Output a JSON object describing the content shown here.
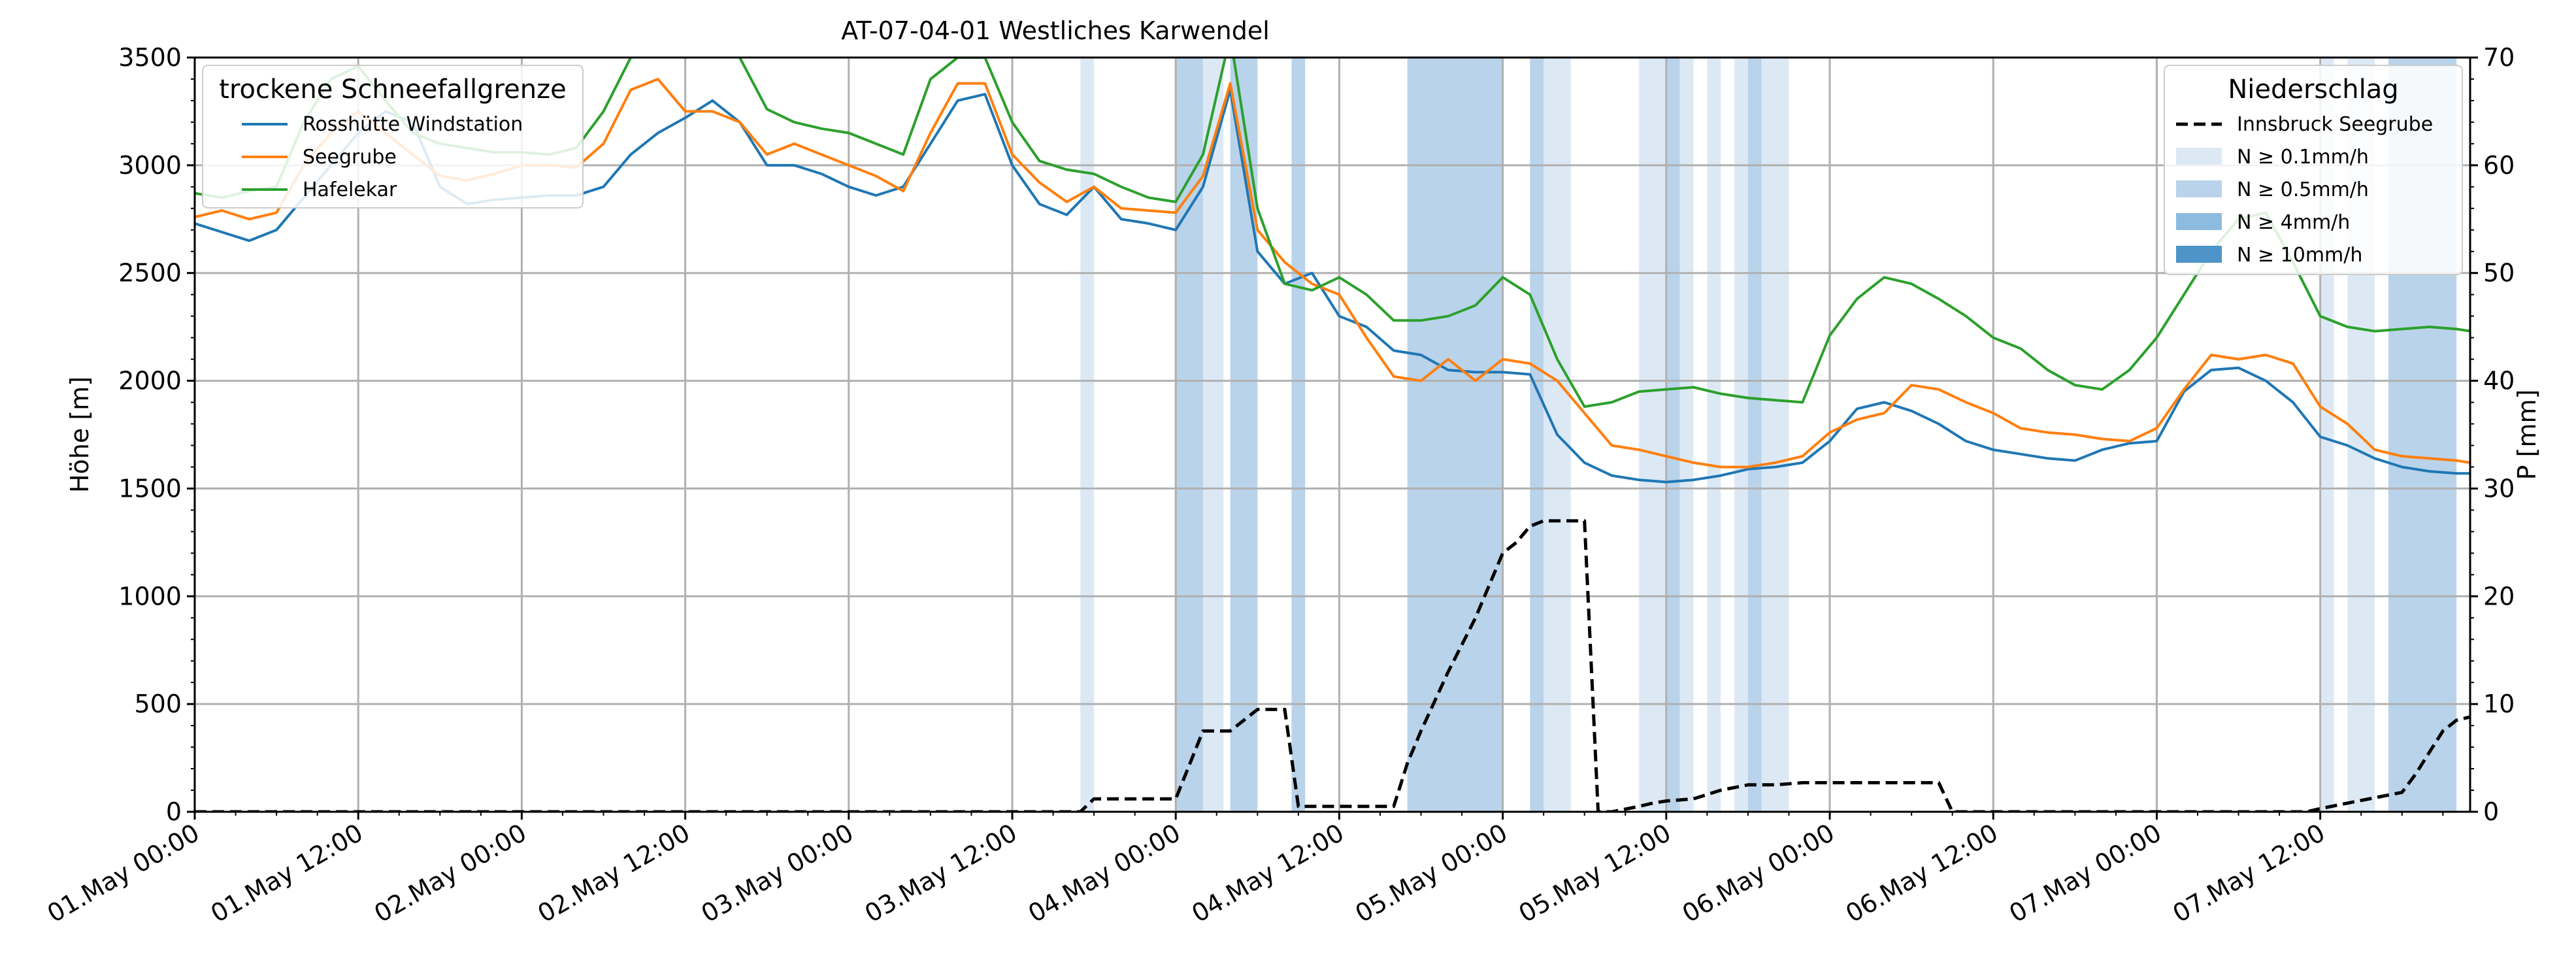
{
  "chart_data": {
    "type": "line",
    "title": "AT-07-04-01 Westliches Karwendel",
    "ylabel": "Höhe [m]",
    "y2label": "P [mm]",
    "xlabel": "",
    "ylim": [
      0,
      3500
    ],
    "y2lim": [
      0,
      70
    ],
    "yticks": [
      "0",
      "500",
      "1000",
      "1500",
      "2000",
      "2500",
      "3000",
      "3500"
    ],
    "y2ticks": [
      "0",
      "10",
      "20",
      "30",
      "40",
      "50",
      "60",
      "70"
    ],
    "x_start": "01.May 00:00",
    "xlim_hours": [
      0,
      167
    ],
    "xticks": [
      "01.May 00:00",
      "01.May 12:00",
      "02.May 00:00",
      "02.May 12:00",
      "03.May 00:00",
      "03.May 12:00",
      "04.May 00:00",
      "04.May 12:00",
      "05.May 00:00",
      "05.May 12:00",
      "06.May 00:00",
      "06.May 12:00",
      "07.May 00:00",
      "07.May 12:00"
    ],
    "grid": true,
    "legend_left": {
      "title": "trockene Schneefallgrenze",
      "placement": "top-left",
      "entries": [
        "Rosshütte Windstation",
        "Seegrube",
        "Hafelekar"
      ]
    },
    "legend_right": {
      "title": "Niederschlag",
      "placement": "top-right",
      "entries": [
        "Innsbruck Seegrube",
        "N ≥ 0.1mm/h",
        "N ≥ 0.5mm/h",
        "N ≥ 4mm/h",
        "N ≥ 10mm/h"
      ]
    },
    "colors": {
      "rosshuette": "#1f77b4",
      "seegrube": "#ff7f0e",
      "hafelekar": "#2ca02c",
      "precip_line": "#000000",
      "band_level1": "#dce9f5",
      "band_level2": "#b9d3ea",
      "band_level3": "#8cbbdf",
      "band_level4": "#4e94c8",
      "grid": "#b0b0b0"
    },
    "series": [
      {
        "name": "Rosshütte Windstation",
        "axis": "left",
        "x": [
          0,
          2,
          4,
          6,
          8,
          10,
          12,
          14,
          16,
          18,
          20,
          22,
          24,
          26,
          28,
          30,
          32,
          34,
          36,
          38,
          40,
          42,
          44,
          46,
          48,
          50,
          52,
          54,
          56,
          58,
          60,
          62,
          64,
          66,
          68,
          70,
          72,
          74,
          76,
          78,
          80,
          82,
          84,
          86,
          88,
          90,
          92,
          94,
          96,
          98,
          100,
          102,
          104,
          106,
          108,
          110,
          112,
          114,
          116,
          118,
          120,
          122,
          124,
          126,
          128,
          130,
          132,
          134,
          136,
          138,
          140,
          142,
          144,
          146,
          148,
          150,
          152,
          154,
          156,
          158,
          160,
          162,
          164,
          166,
          167
        ],
        "y": [
          2730,
          2690,
          2650,
          2700,
          2850,
          3000,
          3150,
          3250,
          3200,
          2900,
          2820,
          2840,
          2850,
          2860,
          2860,
          2900,
          3050,
          3150,
          3220,
          3300,
          3200,
          3000,
          3000,
          2960,
          2900,
          2860,
          2900,
          3100,
          3300,
          3330,
          3000,
          2820,
          2770,
          2900,
          2750,
          2730,
          2700,
          2900,
          3350,
          2600,
          2450,
          2500,
          2300,
          2250,
          2140,
          2120,
          2050,
          2040,
          2040,
          2030,
          1750,
          1620,
          1560,
          1540,
          1530,
          1540,
          1560,
          1590,
          1600,
          1620,
          1720,
          1870,
          1900,
          1860,
          1800,
          1720,
          1680,
          1660,
          1640,
          1630,
          1680,
          1710,
          1720,
          1950,
          2050,
          2060,
          2000,
          1900,
          1740,
          1700,
          1640,
          1600,
          1580,
          1570,
          1570
        ]
      },
      {
        "name": "Seegrube",
        "axis": "left",
        "x": [
          0,
          2,
          4,
          6,
          8,
          10,
          12,
          14,
          16,
          18,
          20,
          22,
          24,
          26,
          28,
          30,
          32,
          34,
          36,
          38,
          40,
          42,
          44,
          46,
          48,
          50,
          52,
          54,
          56,
          58,
          60,
          62,
          64,
          66,
          68,
          70,
          72,
          74,
          76,
          78,
          80,
          82,
          84,
          86,
          88,
          90,
          92,
          94,
          96,
          98,
          100,
          102,
          104,
          106,
          108,
          110,
          112,
          114,
          116,
          118,
          120,
          122,
          124,
          126,
          128,
          130,
          132,
          134,
          136,
          138,
          140,
          142,
          144,
          146,
          148,
          150,
          152,
          154,
          156,
          158,
          160,
          162,
          164,
          166,
          167
        ],
        "y": [
          2760,
          2790,
          2750,
          2780,
          3000,
          3150,
          3250,
          3150,
          3050,
          2950,
          2930,
          2960,
          3000,
          3000,
          2990,
          3100,
          3350,
          3400,
          3250,
          3250,
          3200,
          3050,
          3100,
          3050,
          3000,
          2950,
          2880,
          3150,
          3380,
          3380,
          3050,
          2920,
          2830,
          2900,
          2800,
          2790,
          2780,
          2950,
          3380,
          2700,
          2550,
          2450,
          2400,
          2200,
          2020,
          2000,
          2100,
          2000,
          2100,
          2080,
          2000,
          1850,
          1700,
          1680,
          1650,
          1620,
          1600,
          1600,
          1620,
          1650,
          1760,
          1820,
          1850,
          1980,
          1960,
          1900,
          1850,
          1780,
          1760,
          1750,
          1730,
          1720,
          1780,
          1960,
          2120,
          2100,
          2120,
          2080,
          1880,
          1800,
          1680,
          1650,
          1640,
          1630,
          1620
        ]
      },
      {
        "name": "Hafelekar",
        "axis": "left",
        "x": [
          0,
          2,
          4,
          6,
          8,
          10,
          12,
          14,
          16,
          18,
          20,
          22,
          24,
          26,
          28,
          30,
          32,
          34,
          36,
          38,
          40,
          42,
          44,
          46,
          48,
          50,
          52,
          54,
          56,
          58,
          60,
          62,
          64,
          66,
          68,
          70,
          72,
          74,
          76,
          78,
          80,
          82,
          84,
          86,
          88,
          90,
          92,
          94,
          96,
          98,
          100,
          102,
          104,
          106,
          108,
          110,
          112,
          114,
          116,
          118,
          120,
          122,
          124,
          126,
          128,
          130,
          132,
          134,
          136,
          138,
          140,
          142,
          144,
          146,
          148,
          150,
          152,
          154,
          156,
          158,
          160,
          162,
          164,
          166,
          167
        ],
        "y": [
          2870,
          2850,
          2880,
          2900,
          3200,
          3400,
          3460,
          3300,
          3150,
          3100,
          3080,
          3060,
          3060,
          3050,
          3080,
          3250,
          3500,
          3600,
          3500,
          3520,
          3500,
          3260,
          3200,
          3170,
          3150,
          3100,
          3050,
          3400,
          3500,
          3500,
          3200,
          3020,
          2980,
          2960,
          2900,
          2850,
          2830,
          3050,
          3600,
          2800,
          2450,
          2420,
          2480,
          2400,
          2280,
          2280,
          2300,
          2350,
          2480,
          2400,
          2100,
          1880,
          1900,
          1950,
          1960,
          1970,
          1940,
          1920,
          1910,
          1900,
          2210,
          2380,
          2480,
          2450,
          2380,
          2300,
          2200,
          2150,
          2050,
          1980,
          1960,
          2050,
          2200,
          2400,
          2600,
          2750,
          2780,
          2550,
          2300,
          2250,
          2230,
          2240,
          2250,
          2240,
          2230
        ]
      },
      {
        "name": "Innsbruck Seegrube",
        "axis": "right",
        "x": [
          0,
          65,
          66,
          72,
          74,
          76,
          78,
          80,
          81,
          82,
          88,
          89,
          90,
          92,
          94,
          96,
          97,
          98,
          99,
          100,
          102,
          103,
          104,
          106,
          107,
          108,
          110,
          112,
          114,
          115,
          116,
          118,
          120,
          128,
          129,
          134,
          140,
          155,
          156,
          158,
          162,
          163,
          164,
          165,
          166,
          167
        ],
        "y": [
          0,
          0,
          1.2,
          1.2,
          7.5,
          7.5,
          9.5,
          9.5,
          0.5,
          0.5,
          0.5,
          4.5,
          7.5,
          13,
          18,
          24,
          25,
          26.5,
          27,
          27,
          27,
          0,
          0,
          0.5,
          0.8,
          1,
          1.2,
          2,
          2.5,
          2.5,
          2.5,
          2.7,
          2.7,
          2.7,
          0,
          0,
          0,
          0,
          0.3,
          0.8,
          1.8,
          3.5,
          5.5,
          7.5,
          8.5,
          8.8
        ]
      }
    ],
    "precip_bands": [
      {
        "start": 65,
        "end": 66,
        "level": 1
      },
      {
        "start": 72,
        "end": 74,
        "level": 2
      },
      {
        "start": 74,
        "end": 75.5,
        "level": 1
      },
      {
        "start": 76,
        "end": 78,
        "level": 2
      },
      {
        "start": 80.5,
        "end": 81.5,
        "level": 2
      },
      {
        "start": 89,
        "end": 96,
        "level": 2
      },
      {
        "start": 98,
        "end": 99,
        "level": 2
      },
      {
        "start": 99,
        "end": 101,
        "level": 1
      },
      {
        "start": 106,
        "end": 108,
        "level": 1
      },
      {
        "start": 108,
        "end": 109,
        "level": 2
      },
      {
        "start": 109,
        "end": 110,
        "level": 1
      },
      {
        "start": 111,
        "end": 112,
        "level": 1
      },
      {
        "start": 113,
        "end": 114,
        "level": 1
      },
      {
        "start": 114,
        "end": 115,
        "level": 2
      },
      {
        "start": 115,
        "end": 117,
        "level": 1
      },
      {
        "start": 156,
        "end": 157,
        "level": 1
      },
      {
        "start": 158,
        "end": 160,
        "level": 1
      },
      {
        "start": 161,
        "end": 166,
        "level": 2
      }
    ]
  }
}
